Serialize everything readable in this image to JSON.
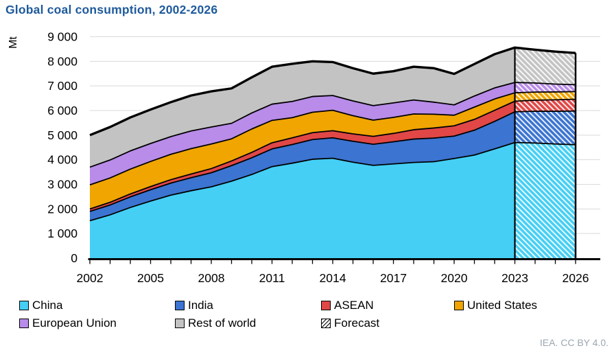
{
  "title": "Global coal consumption, 2002-2026",
  "credit": "IEA. CC BY 4.0.",
  "chart_data": {
    "type": "area",
    "stacked": true,
    "title": "Global coal consumption, 2002-2026",
    "ylabel": "Mt",
    "unit_label": "Mt",
    "ylim": [
      0,
      9000
    ],
    "grid": true,
    "grid_color": "#d9d9d9",
    "legend_position": "bottom",
    "x": [
      2002,
      2003,
      2004,
      2005,
      2006,
      2007,
      2008,
      2009,
      2010,
      2011,
      2012,
      2013,
      2014,
      2015,
      2016,
      2017,
      2018,
      2019,
      2020,
      2021,
      2022,
      2023,
      2024,
      2025,
      2026
    ],
    "xtick_labels": [
      "2002",
      "2005",
      "2008",
      "2011",
      "2014",
      "2017",
      "2020",
      "2023",
      "2026"
    ],
    "xticks": [
      2002,
      2005,
      2008,
      2011,
      2014,
      2017,
      2020,
      2023,
      2026
    ],
    "ytick_labels": [
      "0",
      "1 000",
      "2 000",
      "3 000",
      "4 000",
      "5 000",
      "6 000",
      "7 000",
      "8 000",
      "9 000"
    ],
    "ytick_values": [
      0,
      1000,
      2000,
      3000,
      4000,
      5000,
      6000,
      7000,
      8000,
      9000
    ],
    "forecast_start": 2023,
    "forecast_label": "Forecast",
    "series": [
      {
        "name": "China",
        "color": "#45cff5",
        "values": [
          1520,
          1760,
          2060,
          2320,
          2560,
          2740,
          2900,
          3130,
          3400,
          3720,
          3860,
          4020,
          4060,
          3900,
          3770,
          3830,
          3890,
          3920,
          4050,
          4190,
          4440,
          4700,
          4680,
          4640,
          4610
        ]
      },
      {
        "name": "India",
        "color": "#3b74d1",
        "values": [
          380,
          400,
          430,
          460,
          490,
          530,
          570,
          630,
          680,
          720,
          760,
          800,
          830,
          850,
          860,
          900,
          950,
          960,
          910,
          1010,
          1120,
          1250,
          1290,
          1330,
          1370
        ]
      },
      {
        "name": "ASEAN",
        "color": "#e04746",
        "values": [
          100,
          110,
          120,
          130,
          140,
          150,
          170,
          190,
          220,
          250,
          270,
          280,
          290,
          300,
          320,
          340,
          380,
          410,
          420,
          440,
          450,
          430,
          450,
          465,
          480
        ]
      },
      {
        "name": "United States",
        "color": "#f0a500",
        "values": [
          980,
          990,
          1010,
          1020,
          1030,
          1030,
          1000,
          900,
          950,
          910,
          820,
          830,
          830,
          740,
          660,
          650,
          640,
          560,
          430,
          500,
          460,
          340,
          330,
          320,
          310
        ]
      },
      {
        "name": "European Union",
        "color": "#b88ce8",
        "values": [
          720,
          730,
          740,
          730,
          720,
          720,
          690,
          630,
          650,
          660,
          660,
          640,
          600,
          600,
          590,
          590,
          570,
          490,
          420,
          450,
          450,
          420,
          370,
          320,
          280
        ]
      },
      {
        "name": "Rest of world",
        "color": "#c3c3c3",
        "values": [
          1300,
          1340,
          1360,
          1380,
          1400,
          1440,
          1450,
          1420,
          1450,
          1520,
          1530,
          1430,
          1360,
          1330,
          1300,
          1290,
          1350,
          1380,
          1260,
          1300,
          1370,
          1420,
          1350,
          1320,
          1290
        ]
      }
    ]
  }
}
